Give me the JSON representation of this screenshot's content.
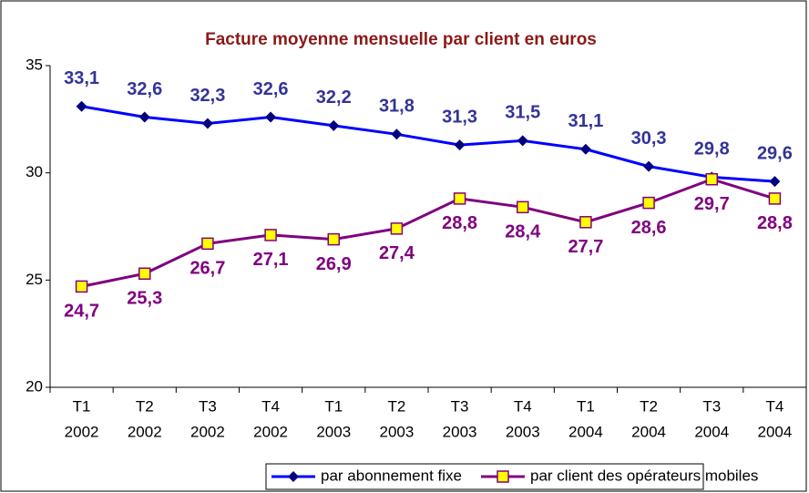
{
  "chart_data": {
    "type": "line",
    "title": "Facture moyenne mensuelle par client en euros",
    "categories": [
      [
        "T1",
        "2002"
      ],
      [
        "T2",
        "2002"
      ],
      [
        "T3",
        "2002"
      ],
      [
        "T4",
        "2002"
      ],
      [
        "T1",
        "2003"
      ],
      [
        "T2",
        "2003"
      ],
      [
        "T3",
        "2003"
      ],
      [
        "T4",
        "2003"
      ],
      [
        "T1",
        "2004"
      ],
      [
        "T2",
        "2004"
      ],
      [
        "T3",
        "2004"
      ],
      [
        "T4",
        "2004"
      ]
    ],
    "series": [
      {
        "name": "par abonnement fixe",
        "color": "#0000ff",
        "marker_color": "#000080",
        "label_color": "#333399",
        "values": [
          33.1,
          32.6,
          32.3,
          32.6,
          32.2,
          31.8,
          31.3,
          31.5,
          31.1,
          30.3,
          29.8,
          29.6
        ],
        "value_labels": [
          "33,1",
          "32,6",
          "32,3",
          "32,6",
          "32,2",
          "31,8",
          "31,3",
          "31,5",
          "31,1",
          "30,3",
          "29,8",
          "29,6"
        ]
      },
      {
        "name": "par client des opérateurs mobiles",
        "color": "#800080",
        "marker_color": "#ffff00",
        "label_color": "#800080",
        "values": [
          24.7,
          25.3,
          26.7,
          27.1,
          26.9,
          27.4,
          28.8,
          28.4,
          27.7,
          28.6,
          29.7,
          28.8
        ],
        "value_labels": [
          "24,7",
          "25,3",
          "26,7",
          "27,1",
          "26,9",
          "27,4",
          "28,8",
          "28,4",
          "27,7",
          "28,6",
          "29,7",
          "28,8"
        ]
      }
    ],
    "ylim": [
      20,
      35
    ],
    "yticks": [
      20,
      25,
      30,
      35
    ],
    "grid": false,
    "legend": "bottom"
  }
}
